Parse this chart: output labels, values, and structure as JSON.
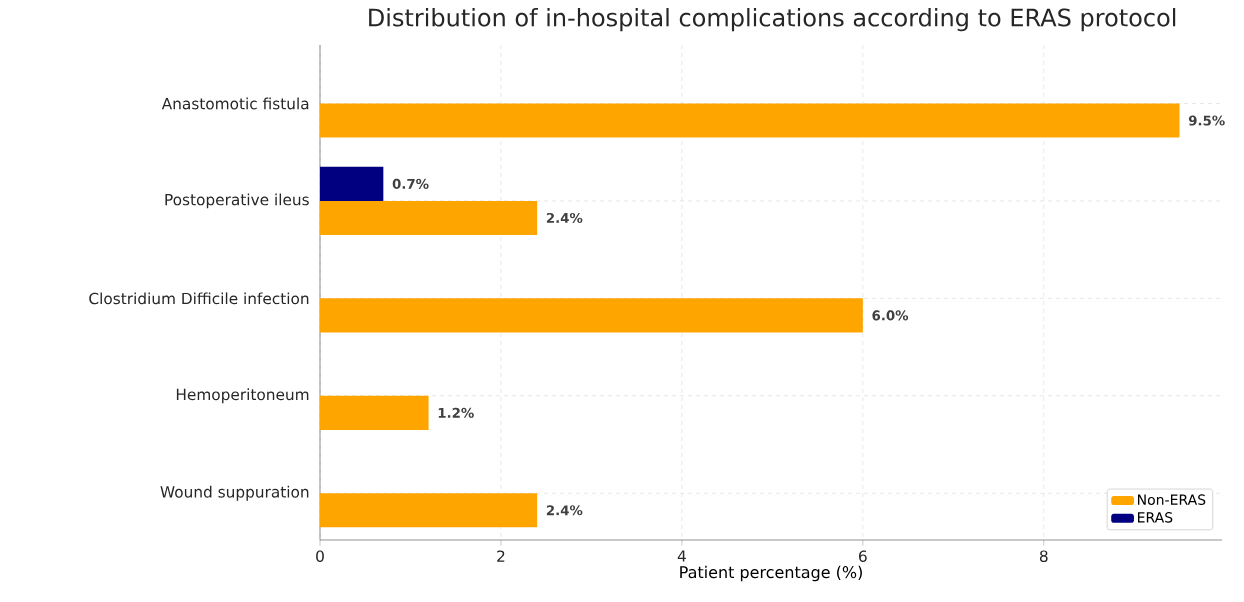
{
  "chart_data": {
    "type": "bar",
    "orientation": "horizontal",
    "title": "Distribution of in-hospital complications according to ERAS protocol",
    "xlabel": "Patient percentage (%)",
    "categories": [
      "Anastomotic fistula",
      "Postoperative ileus",
      "Clostridium Difficile infection",
      "Hemoperitoneum",
      "Wound suppuration"
    ],
    "series": [
      {
        "name": "Non-ERAS",
        "color": "#ffa500",
        "values": [
          9.5,
          2.4,
          6.0,
          1.2,
          2.4
        ],
        "value_labels": [
          "9.5%",
          "2.4%",
          "6.0%",
          "1.2%",
          "2.4%"
        ]
      },
      {
        "name": "ERAS",
        "color": "#000080",
        "values": [
          0,
          0.7,
          0,
          0,
          0
        ],
        "value_labels": [
          null,
          "0.7%",
          null,
          null,
          null
        ]
      }
    ],
    "xlim": [
      0,
      9.97
    ],
    "xticks": [
      0,
      2,
      4,
      6,
      8
    ],
    "grid": true,
    "legend": "bottom right"
  }
}
